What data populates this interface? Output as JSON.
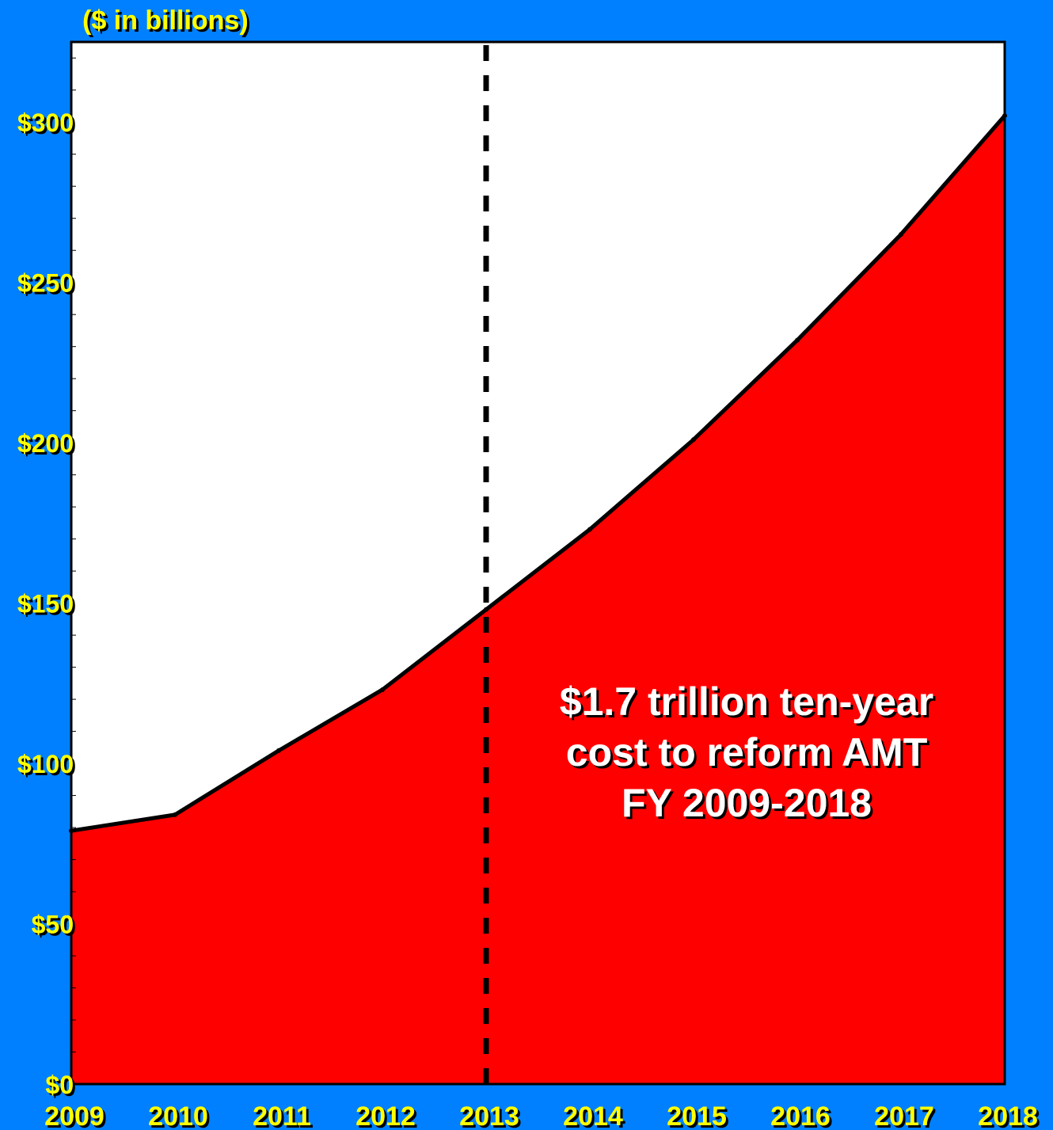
{
  "chart_data": {
    "type": "area",
    "unit_label": "($ in billions)",
    "x": [
      "2009",
      "2010",
      "2011",
      "2012",
      "2013",
      "2014",
      "2015",
      "2016",
      "2017",
      "2018"
    ],
    "values": [
      79,
      84,
      104,
      123,
      148,
      173,
      201,
      232,
      265,
      302
    ],
    "ylim": [
      0,
      325
    ],
    "yticks": [
      {
        "value": 0,
        "label": "$0"
      },
      {
        "value": 50,
        "label": "$50"
      },
      {
        "value": 100,
        "label": "$100"
      },
      {
        "value": 150,
        "label": "$150"
      },
      {
        "value": 200,
        "label": "$200"
      },
      {
        "value": 250,
        "label": "$250"
      },
      {
        "value": 300,
        "label": "$300"
      }
    ],
    "minor_tick_step": 10,
    "vertical_marker": {
      "x": "2013",
      "style": "dashed"
    },
    "annotation": [
      "$1.7 trillion ten-year",
      "cost to reform AMT",
      "FY 2009-2018"
    ],
    "grid": false,
    "legend": "none",
    "colors": {
      "background": "#0080ff",
      "plot_background": "#ffffff",
      "area_fill": "#ff0000",
      "line": "#000000",
      "axis_labels": "#ffff00",
      "annotation_text": "#ffffff"
    }
  }
}
